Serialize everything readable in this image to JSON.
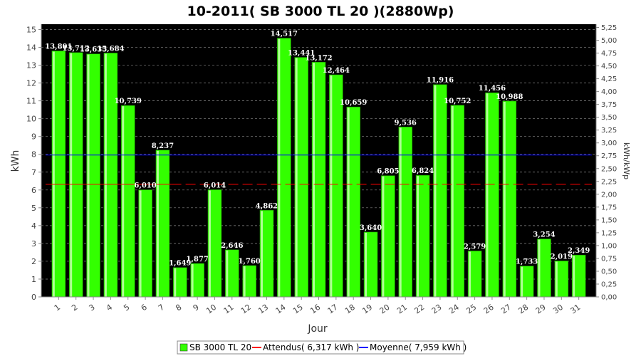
{
  "chart_data": {
    "type": "bar",
    "title": "10-2011( SB 3000 TL 20 )(2880Wp)",
    "xlabel": "Jour",
    "ylabel": "kWh",
    "y2label": "kWh/kWp",
    "ylim": [
      0,
      15.3
    ],
    "y2lim": [
      0,
      5.3125
    ],
    "y_ticks": [
      "0",
      "1",
      "2",
      "3",
      "4",
      "5",
      "6",
      "7",
      "8",
      "9",
      "10",
      "11",
      "12",
      "13",
      "14",
      "15"
    ],
    "y2_ticks": [
      "0,00",
      "0,25",
      "0,50",
      "0,75",
      "1,00",
      "1,25",
      "1,50",
      "1,75",
      "2,00",
      "2,25",
      "2,50",
      "2,75",
      "3,00",
      "3,25",
      "3,50",
      "3,75",
      "4,00",
      "4,25",
      "4,50",
      "4,75",
      "5,00",
      "5,25"
    ],
    "grid": true,
    "categories": [
      "1",
      "2",
      "3",
      "4",
      "5",
      "6",
      "7",
      "8",
      "9",
      "10",
      "11",
      "12",
      "13",
      "14",
      "15",
      "16",
      "17",
      "18",
      "19",
      "20",
      "21",
      "22",
      "23",
      "24",
      "25",
      "26",
      "27",
      "28",
      "29",
      "30",
      "31"
    ],
    "series": [
      {
        "name": "SB 3000 TL 20",
        "color": "#33ff00",
        "values": [
          13.801,
          13.712,
          13.635,
          13.684,
          10.739,
          6.01,
          8.237,
          1.649,
          1.877,
          6.014,
          2.646,
          1.76,
          4.862,
          14.517,
          13.441,
          13.172,
          12.464,
          10.659,
          3.64,
          6.805,
          9.536,
          6.824,
          11.916,
          10.752,
          2.579,
          11.456,
          10.988,
          1.733,
          3.254,
          2.019,
          2.349
        ],
        "labels": [
          "13,801",
          "13,712",
          "13,635",
          "13,684",
          "10,739",
          "6,010",
          "8,237",
          "1,649",
          "1,877",
          "6,014",
          "2,646",
          "1,760",
          "4,862",
          "14,517",
          "13,441",
          "13,172",
          "12,464",
          "10,659",
          "3,640",
          "6,805",
          "9,536",
          "6,824",
          "11,916",
          "10,752",
          "2,579",
          "11,456",
          "10,988",
          "1,733",
          "3,254",
          "2,019",
          "2,349"
        ]
      }
    ],
    "reference_lines": [
      {
        "name": "Attendus",
        "value": 6.317,
        "color": "#ff0000",
        "dashed_from_index": 7
      },
      {
        "name": "Moyenne",
        "value": 7.959,
        "color": "#0000ff"
      }
    ],
    "legend": {
      "placement": "bottom",
      "items": [
        "SB 3000 TL 20",
        "Attendus( 6,317 kWh )",
        "Moyenne( 7,959 kWh )"
      ]
    },
    "colors": {
      "plot_background": "#000000",
      "bar": "#33ff00",
      "bar_highlight": "#c8ffb0",
      "grid": "#888888"
    }
  }
}
